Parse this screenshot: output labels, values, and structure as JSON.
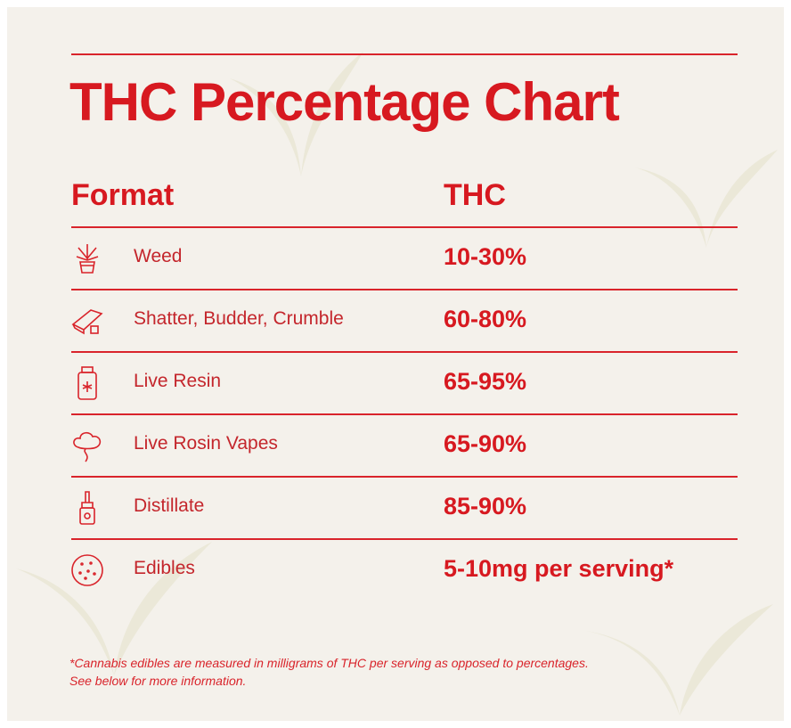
{
  "title": "THC Percentage Chart",
  "table": {
    "headers": [
      "Format",
      "THC"
    ],
    "rows": [
      [
        "Weed",
        "10-30%"
      ],
      [
        "Shatter, Budder, Crumble",
        "60-80%"
      ],
      [
        "Live Resin",
        "65-95%"
      ],
      [
        "Live Rosin Vapes",
        "65-90%"
      ],
      [
        "Distillate",
        "85-90%"
      ],
      [
        "Edibles",
        "5-10mg per serving*"
      ]
    ]
  },
  "footnote": [
    "*Cannabis edibles are measured in milligrams of THC per serving as opposed to percentages.",
    "See below for more information."
  ]
}
